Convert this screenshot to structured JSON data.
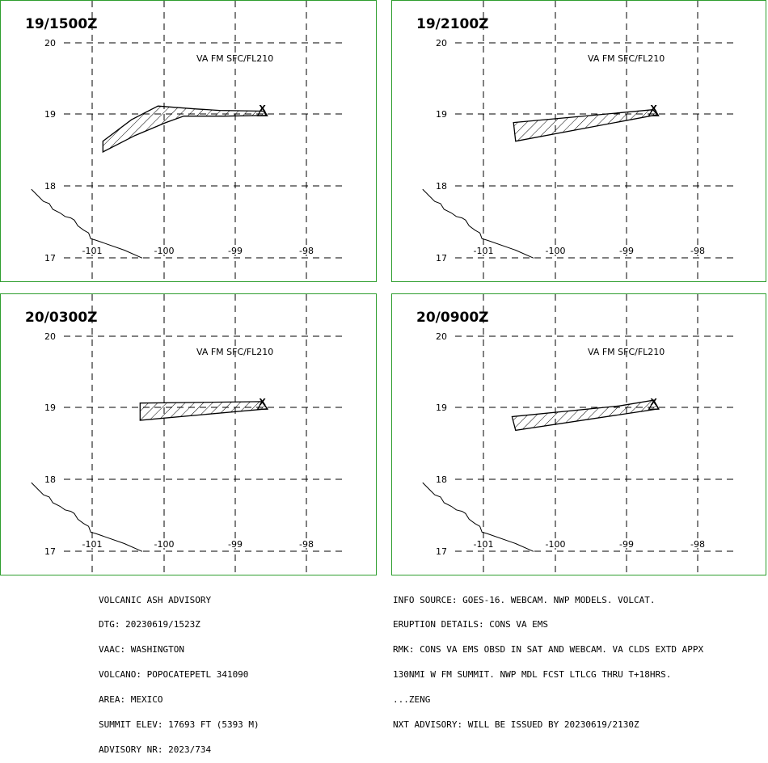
{
  "panels": [
    {
      "time": "19/1500Z",
      "level": "VA FM SFC/FL210",
      "polygon": [
        [
          -100.85,
          18.47
        ],
        [
          -100.85,
          18.62
        ],
        [
          -100.45,
          18.92
        ],
        [
          -100.08,
          19.11
        ],
        [
          -99.55,
          19.07
        ],
        [
          -99.22,
          19.05
        ],
        [
          -98.6,
          19.04
        ],
        [
          -98.57,
          18.98
        ],
        [
          -99.15,
          18.97
        ],
        [
          -99.72,
          18.97
        ],
        [
          -99.97,
          18.88
        ],
        [
          -100.4,
          18.7
        ]
      ]
    },
    {
      "time": "19/2100Z",
      "level": "VA FM SFC/FL210",
      "polygon": [
        [
          -100.55,
          18.62
        ],
        [
          -100.58,
          18.88
        ],
        [
          -99.7,
          18.96
        ],
        [
          -98.63,
          19.06
        ],
        [
          -98.57,
          18.99
        ]
      ]
    },
    {
      "time": "20/0300Z",
      "level": "VA FM SFC/FL210",
      "polygon": [
        [
          -100.33,
          18.82
        ],
        [
          -100.33,
          19.06
        ],
        [
          -98.63,
          19.08
        ],
        [
          -98.55,
          18.98
        ],
        [
          -100.0,
          18.85
        ]
      ]
    },
    {
      "time": "20/0900Z",
      "level": "VA FM SFC/FL210",
      "polygon": [
        [
          -100.55,
          18.68
        ],
        [
          -100.6,
          18.87
        ],
        [
          -99.1,
          19.02
        ],
        [
          -98.62,
          19.1
        ],
        [
          -98.55,
          18.98
        ]
      ]
    }
  ],
  "lat_labels": [
    "20",
    "19",
    "18",
    "17"
  ],
  "lon_labels": [
    "-101",
    "-100",
    "-99",
    "-98"
  ],
  "volcano_marker": "X",
  "volcano_position": [
    -98.62,
    19.02
  ],
  "coastline": [
    [
      -101.85,
      17.95
    ],
    [
      -101.75,
      17.85
    ],
    [
      -101.68,
      17.78
    ],
    [
      -101.6,
      17.75
    ],
    [
      -101.55,
      17.67
    ],
    [
      -101.45,
      17.62
    ],
    [
      -101.38,
      17.57
    ],
    [
      -101.3,
      17.55
    ],
    [
      -101.25,
      17.52
    ],
    [
      -101.2,
      17.44
    ],
    [
      -101.12,
      17.38
    ],
    [
      -101.05,
      17.34
    ],
    [
      -101.02,
      17.26
    ],
    [
      -100.95,
      17.24
    ],
    [
      -100.55,
      17.1
    ],
    [
      -100.3,
      16.99
    ]
  ],
  "colors": {
    "frame": "#2e9e2e",
    "grid": "#000000",
    "ink": "#000000"
  },
  "advisory_left": [
    "VOLCANIC ASH ADVISORY",
    "DTG: 20230619/1523Z",
    "VAAC: WASHINGTON",
    "VOLCANO: POPOCATEPETL 341090",
    "AREA: MEXICO",
    "SUMMIT ELEV: 17693 FT (5393 M)",
    "ADVISORY NR: 2023/734"
  ],
  "advisory_right": [
    "INFO SOURCE: GOES-16. WEBCAM. NWP MODELS. VOLCAT.",
    "ERUPTION DETAILS: CONS VA EMS",
    "RMK: CONS VA EMS OBSD IN SAT AND WEBCAM. VA CLDS EXTD APPX",
    "130NMI W FM SUMMIT. NWP MDL FCST LTLCG THRU T+18HRS.",
    "...ZENG",
    "NXT ADVISORY: WILL BE ISSUED BY 20230619/2130Z"
  ]
}
